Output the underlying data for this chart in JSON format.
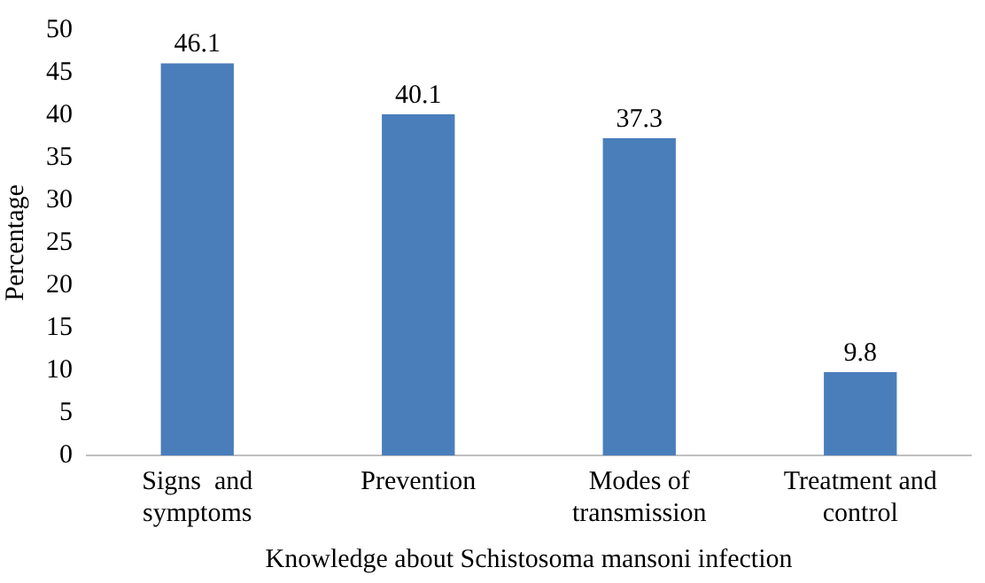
{
  "chart_data": {
    "type": "bar",
    "xlabel": "Knowledge about Schistosoma mansoni infection",
    "ylabel": "Percentage",
    "categories": [
      "Signs  and symptoms",
      "Prevention",
      "Modes of transmission",
      "Treatment and control"
    ],
    "values": [
      46.1,
      40.1,
      37.3,
      9.8
    ],
    "color": "#4a7ebb",
    "ylim": [
      0,
      50
    ],
    "yticks": [
      0,
      5,
      10,
      15,
      20,
      25,
      30,
      35,
      40,
      45,
      50
    ],
    "grid": false,
    "legend": false,
    "data_labels": true
  }
}
